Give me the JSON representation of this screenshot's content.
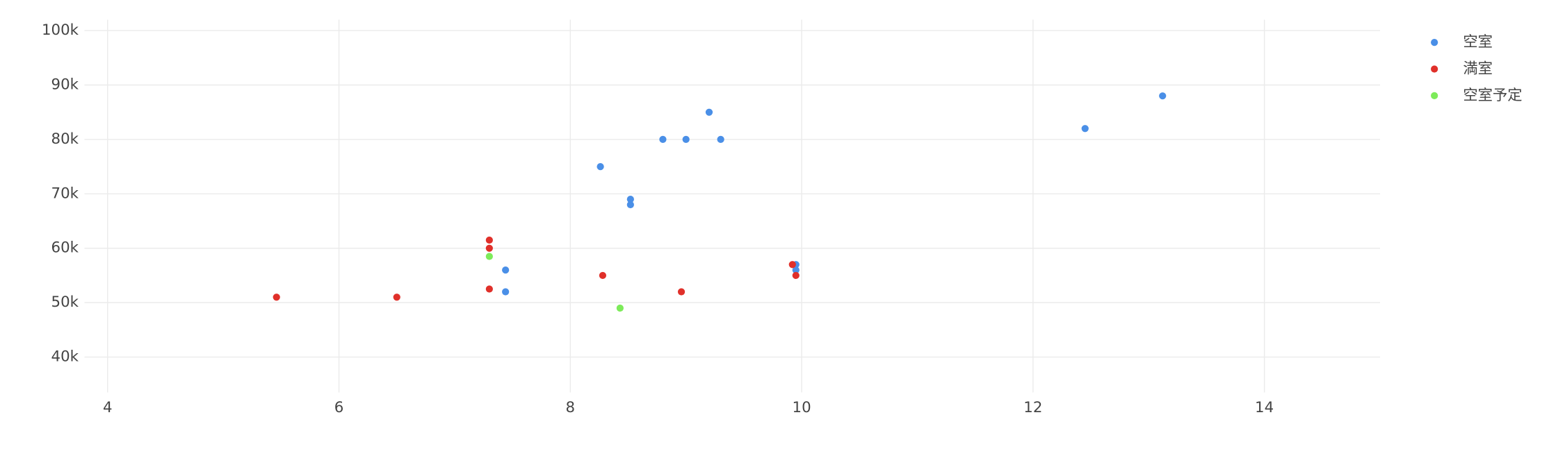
{
  "chart_data": {
    "type": "scatter",
    "series": [
      {
        "name": "空室",
        "color": "#4a8fe7",
        "x": [
          13.12,
          12.45,
          9.2,
          8.8,
          9.0,
          9.3,
          8.26,
          8.52,
          8.52,
          7.44,
          7.44,
          9.95,
          9.95
        ],
        "values": [
          88000,
          82000,
          85000,
          80000,
          80000,
          80000,
          75000,
          69000,
          68000,
          56000,
          52000,
          57000,
          56000
        ]
      },
      {
        "name": "満室",
        "color": "#e0302a",
        "x": [
          5.46,
          6.5,
          7.3,
          7.3,
          7.3,
          8.28,
          8.96,
          9.92,
          9.95
        ],
        "values": [
          51000,
          51000,
          61500,
          60000,
          52500,
          55000,
          52000,
          57000,
          55000
        ]
      },
      {
        "name": "空室予定",
        "color": "#7deb5a",
        "x": [
          7.3,
          8.43
        ],
        "values": [
          58500,
          49000
        ]
      }
    ],
    "xlim": [
      3.8,
      15
    ],
    "xticks": [
      4,
      6,
      8,
      10,
      12,
      14
    ],
    "ylim": [
      33500,
      102000
    ],
    "yticks": [
      {
        "value": 40000,
        "label": "40k"
      },
      {
        "value": 50000,
        "label": "50k"
      },
      {
        "value": 60000,
        "label": "60k"
      },
      {
        "value": 70000,
        "label": "70k"
      },
      {
        "value": 80000,
        "label": "80k"
      },
      {
        "value": 90000,
        "label": "90k"
      },
      {
        "value": 100000,
        "label": "100k"
      }
    ],
    "grid": true,
    "legend": "top-right"
  }
}
